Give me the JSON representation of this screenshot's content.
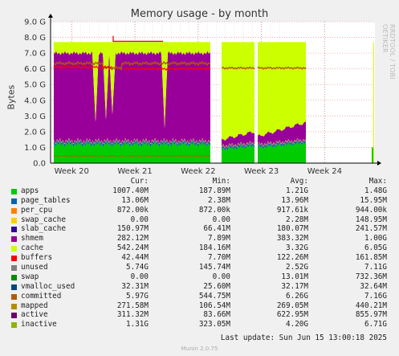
{
  "chart_data": {
    "type": "area",
    "title": "Memory usage - by month",
    "ylabel": "Bytes",
    "side_label": "RRDTOOL / TOBI OETIKER",
    "ylim": [
      0,
      9.0
    ],
    "yticks": [
      "0.0",
      "1.0 G",
      "2.0 G",
      "3.0 G",
      "4.0 G",
      "5.0 G",
      "6.0 G",
      "7.0 G",
      "8.0 G",
      "9.0 G"
    ],
    "xticks": [
      {
        "label": "Week 20",
        "pos": 0.065
      },
      {
        "label": "Week 21",
        "pos": 0.26
      },
      {
        "label": "Week 22",
        "pos": 0.455
      },
      {
        "label": "Week 23",
        "pos": 0.65
      },
      {
        "label": "Week 24",
        "pos": 0.845
      }
    ],
    "legend_header": {
      "cur": "Cur:",
      "min": "Min:",
      "avg": "Avg:",
      "max": "Max:"
    },
    "series": [
      {
        "name": "apps",
        "color": "#00cc00",
        "cur": "1007.40M",
        "min": "187.89M",
        "avg": "1.21G",
        "max": "1.48G"
      },
      {
        "name": "page_tables",
        "color": "#0066b3",
        "cur": "13.06M",
        "min": "2.38M",
        "avg": "13.96M",
        "max": "15.95M"
      },
      {
        "name": "per_cpu",
        "color": "#ff8000",
        "cur": "872.00k",
        "min": "872.00k",
        "avg": "917.61k",
        "max": "944.00k"
      },
      {
        "name": "swap_cache",
        "color": "#ffcc00",
        "cur": "0.00",
        "min": "0.00",
        "avg": "2.28M",
        "max": "148.95M"
      },
      {
        "name": "slab_cache",
        "color": "#330099",
        "cur": "150.97M",
        "min": "66.41M",
        "avg": "180.07M",
        "max": "241.57M"
      },
      {
        "name": "shmem",
        "color": "#990099",
        "cur": "282.12M",
        "min": "7.89M",
        "avg": "383.32M",
        "max": "1.00G"
      },
      {
        "name": "cache",
        "color": "#ccff00",
        "cur": "542.24M",
        "min": "184.16M",
        "avg": "3.32G",
        "max": "6.05G"
      },
      {
        "name": "buffers",
        "color": "#ff0000",
        "cur": "42.44M",
        "min": "7.70M",
        "avg": "122.26M",
        "max": "161.85M"
      },
      {
        "name": "unused",
        "color": "#808080",
        "cur": "5.74G",
        "min": "145.74M",
        "avg": "2.52G",
        "max": "7.11G"
      },
      {
        "name": "swap",
        "color": "#008f00",
        "cur": "0.00",
        "min": "0.00",
        "avg": "13.01M",
        "max": "732.36M"
      },
      {
        "name": "vmalloc_used",
        "color": "#00487d",
        "cur": "32.31M",
        "min": "25.60M",
        "avg": "32.17M",
        "max": "32.64M"
      },
      {
        "name": "committed",
        "color": "#b35a00",
        "cur": "5.97G",
        "min": "544.75M",
        "avg": "6.26G",
        "max": "7.16G"
      },
      {
        "name": "mapped",
        "color": "#b38f00",
        "cur": "271.58M",
        "min": "106.54M",
        "avg": "269.05M",
        "max": "440.21M"
      },
      {
        "name": "active",
        "color": "#6b006b",
        "cur": "311.32M",
        "min": "83.66M",
        "avg": "622.95M",
        "max": "855.97M"
      },
      {
        "name": "inactive",
        "color": "#8fb300",
        "cur": "1.31G",
        "min": "323.05M",
        "avg": "4.20G",
        "max": "6.71G"
      }
    ],
    "last_update": "Last update: Sun Jun 15 13:00:18 2025",
    "version": "Munin 2.0.75"
  }
}
